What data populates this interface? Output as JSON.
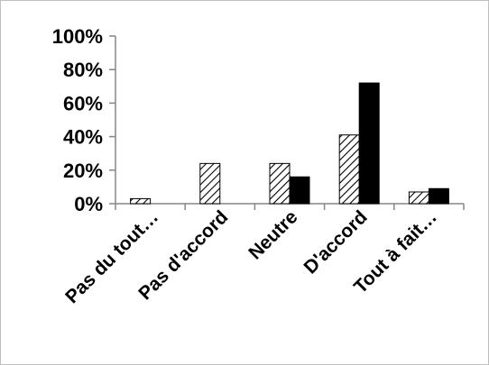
{
  "chart_data": {
    "type": "bar",
    "title": "",
    "xlabel": "",
    "ylabel": "",
    "ylim": [
      0,
      100
    ],
    "y_ticks": [
      "0%",
      "20%",
      "40%",
      "60%",
      "80%",
      "100%"
    ],
    "y_tick_values": [
      0,
      20,
      40,
      60,
      80,
      100
    ],
    "categories": [
      "Pas du tout…",
      "Pas d'accord",
      "Neutre",
      "D'accord",
      "Tout à fait…"
    ],
    "series": [
      {
        "fill": "hatched",
        "color": "#000000",
        "values": [
          3,
          24,
          24,
          41,
          7
        ]
      },
      {
        "fill": "solid",
        "color": "#000000",
        "values": [
          0,
          0,
          16,
          72,
          9
        ]
      }
    ],
    "grid": false,
    "legend": "none"
  }
}
